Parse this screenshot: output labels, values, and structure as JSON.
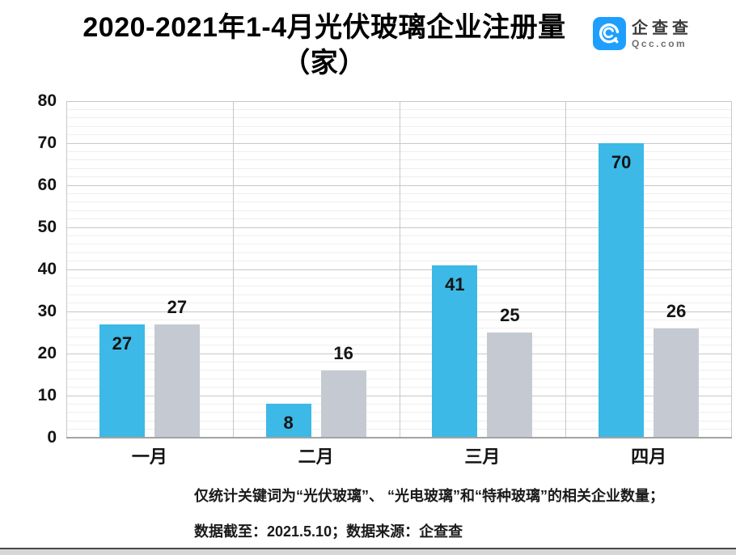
{
  "title": {
    "line1": "2020-2021年1-4月光伏玻璃企业注册量",
    "line2": "（家）"
  },
  "logo": {
    "name": "企查查",
    "domain": "Qcc.com",
    "color": "#1e9fff"
  },
  "chart_data": {
    "type": "bar",
    "title": "2020-2021年1-4月光伏玻璃企业注册量（家）",
    "categories": [
      "一月",
      "二月",
      "三月",
      "四月"
    ],
    "series": [
      {
        "name": "blue",
        "color": "#3cb9e6",
        "values": [
          27,
          8,
          41,
          70
        ],
        "label_position": "inside-top"
      },
      {
        "name": "gray",
        "color": "#c5cad2",
        "values": [
          27,
          16,
          25,
          26
        ],
        "label_position": "above"
      }
    ],
    "ylim": [
      0,
      80
    ],
    "y_ticks": [
      0,
      10,
      20,
      30,
      40,
      50,
      60,
      70,
      80
    ],
    "y_major_step": 10,
    "y_minor_step": 2,
    "grid": true,
    "legend_position": "none",
    "value_labels_shown": true
  },
  "footnote": {
    "line1": "仅统计关键词为“光伏玻璃”、 “光电玻璃”和“特种玻璃”的相关企业数量；",
    "line2": "数据截至：2021.5.10；数据来源：企查查"
  }
}
